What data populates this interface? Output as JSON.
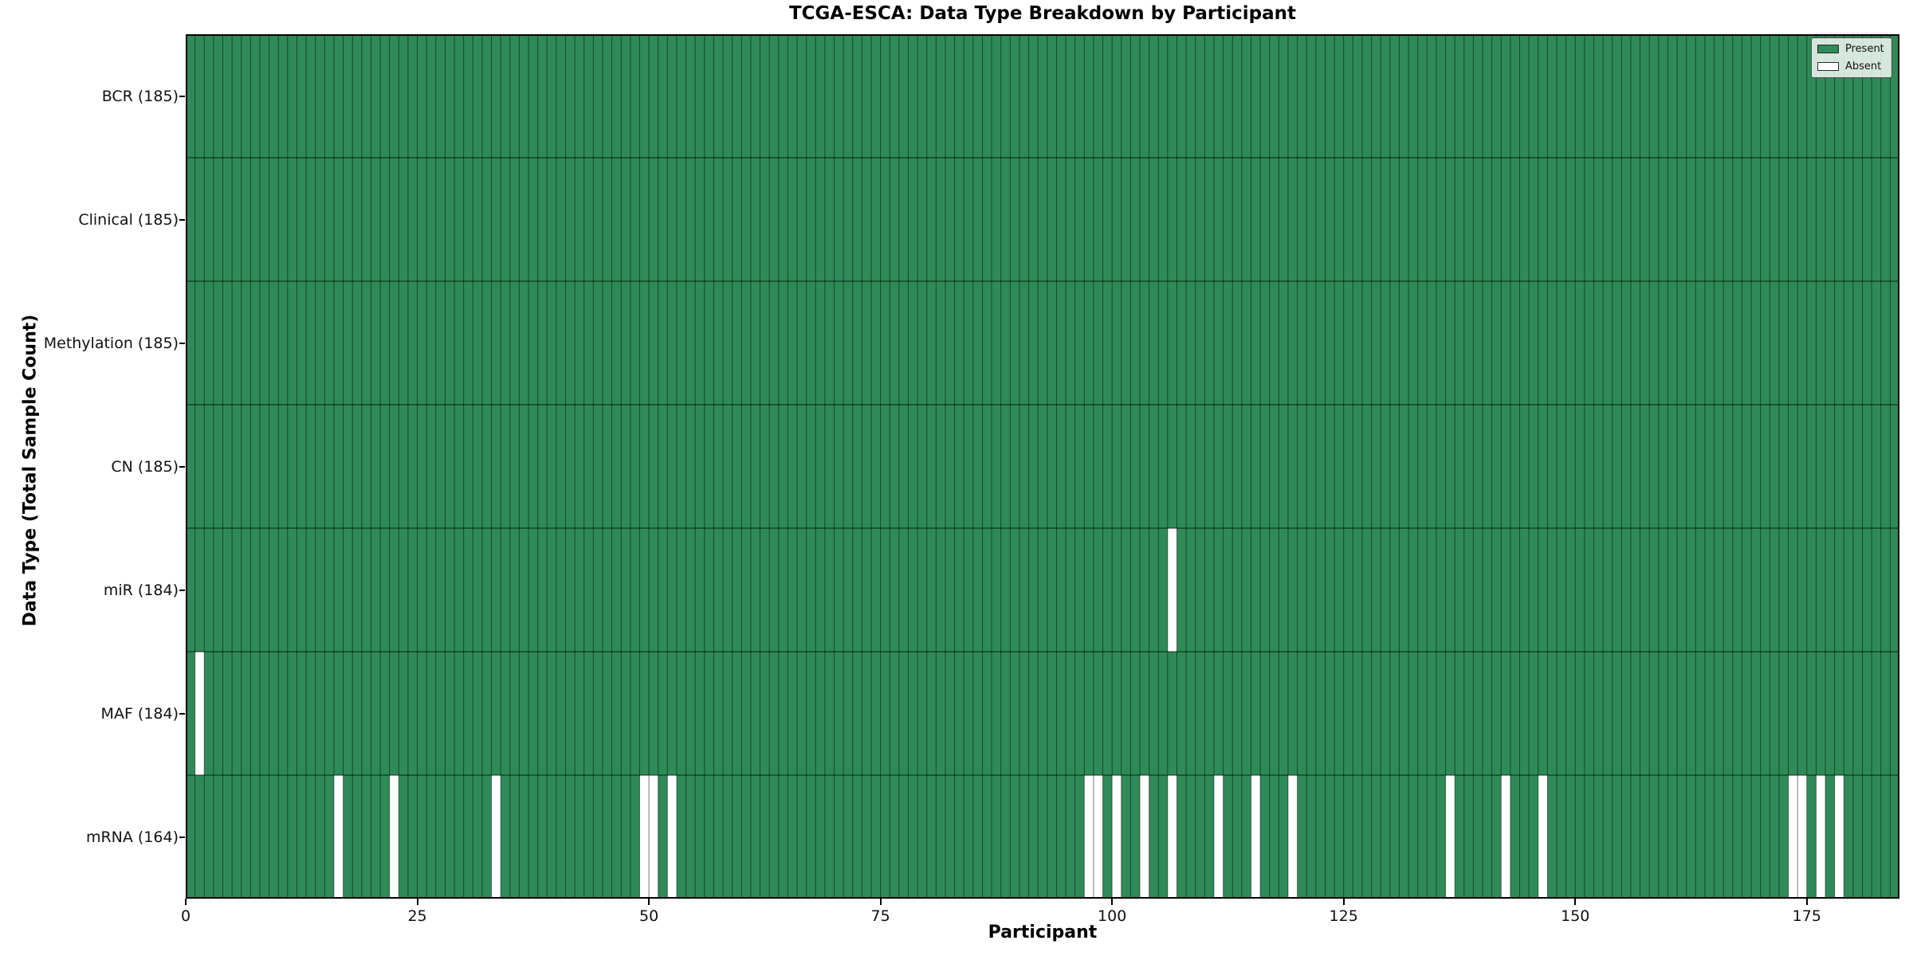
{
  "title": "TCGA-ESCA: Data Type Breakdown by Participant",
  "xlabel": "Participant",
  "ylabel": "Data Type (Total Sample Count)",
  "legend": {
    "present_label": "Present",
    "absent_label": "Absent"
  },
  "colors": {
    "present": "#2e8b57",
    "absent": "#ffffff",
    "grid_line": "rgba(0,0,0,0.5)",
    "row_divider": "rgba(0,0,0,0.62)",
    "plot_border": "#000000"
  },
  "chart_data": {
    "type": "heatmap",
    "title": "TCGA-ESCA: Data Type Breakdown by Participant",
    "xlabel": "Participant",
    "ylabel": "Data Type (Total Sample Count)",
    "legend_entries": [
      {
        "label": "Present",
        "color": "#2e8b57"
      },
      {
        "label": "Absent",
        "color": "#ffffff"
      }
    ],
    "legend_position": "upper right",
    "n_participants": 185,
    "xlim": [
      0,
      185
    ],
    "x_ticks": [
      0,
      25,
      50,
      75,
      100,
      125,
      150,
      175
    ],
    "rows": [
      {
        "label": "BCR (185)",
        "data_type": "BCR",
        "total_count": 185,
        "absent_participants": []
      },
      {
        "label": "Clinical (185)",
        "data_type": "Clinical",
        "total_count": 185,
        "absent_participants": []
      },
      {
        "label": "Methylation (185)",
        "data_type": "Methylation",
        "total_count": 185,
        "absent_participants": []
      },
      {
        "label": "CN (185)",
        "data_type": "CN",
        "total_count": 185,
        "absent_participants": []
      },
      {
        "label": "miR (184)",
        "data_type": "miR",
        "total_count": 184,
        "absent_participants": [
          106
        ]
      },
      {
        "label": "MAF (184)",
        "data_type": "MAF",
        "total_count": 184,
        "absent_participants": [
          1
        ]
      },
      {
        "label": "mRNA (164)",
        "data_type": "mRNA",
        "total_count": 164,
        "absent_participants": [
          16,
          22,
          33,
          49,
          50,
          52,
          97,
          98,
          100,
          103,
          106,
          111,
          115,
          119,
          136,
          142,
          146,
          173,
          174,
          176,
          178
        ]
      }
    ]
  }
}
